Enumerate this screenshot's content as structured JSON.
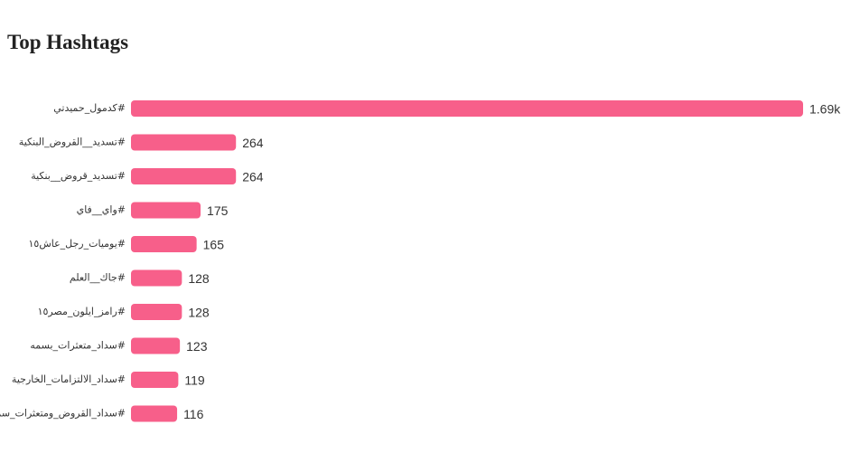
{
  "chart_data": {
    "type": "bar",
    "orientation": "horizontal",
    "title": "Top Hashtags",
    "categories": [
      "#كدمول_حميدتي",
      "#تسديد__القروض_البنكية",
      "#تسديد_قروض__بنكية",
      "#واي__فاي",
      "#يوميات_رجل_عاش١٥",
      "#جاك__العلم",
      "#رامز_ايلون_مصر١٥",
      "#سداد_متعثرات_بسمه",
      "#سداد_الالتزامات_الخارجية",
      "#سداد_القروض_ومتعثرات_سمه"
    ],
    "values": [
      1690,
      264,
      264,
      175,
      165,
      128,
      128,
      123,
      119,
      116
    ],
    "value_labels": [
      "1.69k",
      "264",
      "264",
      "175",
      "165",
      "128",
      "128",
      "123",
      "119",
      "116"
    ],
    "color": "#f75f8a"
  }
}
